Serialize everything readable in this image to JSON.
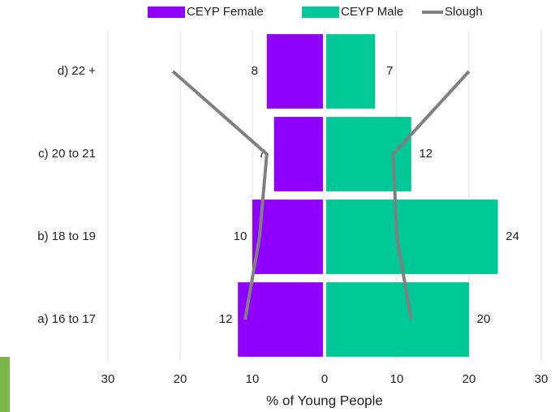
{
  "chart_data": {
    "type": "pyramid",
    "categories": [
      "a) 16 to 17",
      "b) 18 to 19",
      "c) 20 to 21",
      "d) 22 +"
    ],
    "series": [
      {
        "name": "CEYP Female",
        "color": "#8f00ff",
        "values": [
          -12,
          -10,
          -7,
          -8
        ],
        "value_labels": [
          "12",
          "10",
          "7",
          "8"
        ]
      },
      {
        "name": "CEYP Male",
        "color": "#00c896",
        "values": [
          20,
          24,
          12,
          7
        ]
      },
      {
        "name": "Slough",
        "color": "#808080",
        "type": "line",
        "values_female": [
          -11,
          -9,
          -8,
          -21
        ],
        "values_male": [
          12,
          10,
          9.5,
          20
        ]
      }
    ],
    "xlim": [
      -30,
      30
    ],
    "xticks": [
      {
        "value": -30,
        "label": "30"
      },
      {
        "value": -20,
        "label": "20"
      },
      {
        "value": -10,
        "label": "10"
      },
      0,
      10,
      20,
      30
    ],
    "xlabel": "% of Young People",
    "grid": true,
    "legend": "top"
  }
}
